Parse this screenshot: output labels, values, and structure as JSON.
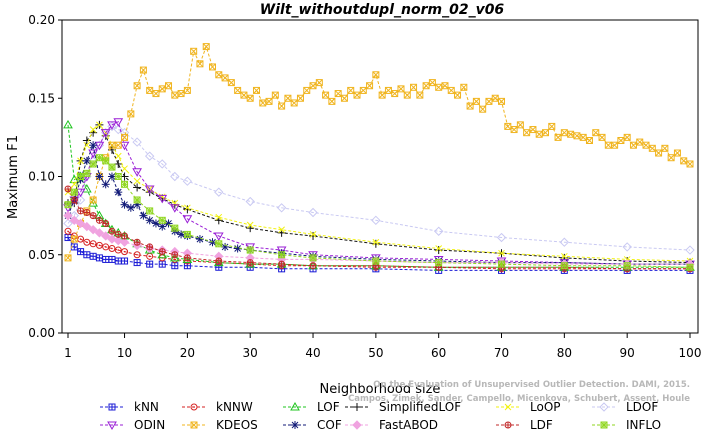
{
  "chart_data": {
    "type": "line",
    "title": "Wilt_withoutdupl_norm_02_v06",
    "xlabel": "Neighborhood size",
    "ylabel": "Maximum F1",
    "xlim": [
      1,
      100
    ],
    "ylim": [
      0,
      0.2
    ],
    "x_ticks": [
      "1",
      "10",
      "20",
      "30",
      "40",
      "50",
      "60",
      "70",
      "80",
      "90",
      "100"
    ],
    "y_ticks": [
      "0.00",
      "0.05",
      "0.10",
      "0.15",
      "0.20"
    ],
    "legend_position": "bottom",
    "credit": [
      "Campos, Zimek, Sander, Campello, Micenkova, Schubert, Assent, Houle",
      "On the Evaluation of Unsupervised Outlier Detection. DAMI, 2015."
    ],
    "series": [
      {
        "name": "kNN",
        "color": "#1c1cd6",
        "marker": "square-plus",
        "x": [
          1,
          2,
          3,
          4,
          5,
          6,
          7,
          8,
          9,
          10,
          12,
          14,
          16,
          18,
          20,
          25,
          30,
          35,
          40,
          50,
          60,
          70,
          80,
          90,
          100
        ],
        "y": [
          0.061,
          0.055,
          0.052,
          0.05,
          0.049,
          0.048,
          0.047,
          0.047,
          0.046,
          0.046,
          0.045,
          0.044,
          0.044,
          0.043,
          0.043,
          0.042,
          0.042,
          0.041,
          0.041,
          0.041,
          0.04,
          0.04,
          0.04,
          0.04,
          0.04
        ]
      },
      {
        "name": "kNNW",
        "color": "#d62222",
        "marker": "circle-dot",
        "x": [
          1,
          2,
          3,
          4,
          5,
          6,
          7,
          8,
          9,
          10,
          12,
          14,
          16,
          18,
          20,
          25,
          30,
          35,
          40,
          50,
          60,
          70,
          80,
          90,
          100
        ],
        "y": [
          0.065,
          0.062,
          0.06,
          0.058,
          0.057,
          0.056,
          0.055,
          0.054,
          0.053,
          0.052,
          0.05,
          0.049,
          0.048,
          0.047,
          0.046,
          0.045,
          0.044,
          0.043,
          0.043,
          0.042,
          0.042,
          0.041,
          0.041,
          0.041,
          0.041
        ]
      },
      {
        "name": "LOF",
        "color": "#1fc41f",
        "marker": "triangle",
        "x": [
          1,
          2,
          3,
          4,
          5,
          6,
          7,
          8,
          9,
          10,
          12,
          14,
          16,
          18,
          20,
          25,
          30,
          35,
          40,
          50,
          60,
          70,
          80,
          90,
          100
        ],
        "y": [
          0.133,
          0.098,
          0.1,
          0.092,
          0.083,
          0.075,
          0.07,
          0.066,
          0.064,
          0.062,
          0.057,
          0.053,
          0.05,
          0.048,
          0.047,
          0.045,
          0.044,
          0.044,
          0.043,
          0.043,
          0.042,
          0.042,
          0.042,
          0.042,
          0.042
        ]
      },
      {
        "name": "SimplifiedLOF",
        "color": "#111111",
        "marker": "plus",
        "x": [
          1,
          2,
          3,
          4,
          5,
          6,
          7,
          8,
          9,
          10,
          12,
          14,
          16,
          18,
          20,
          25,
          30,
          35,
          40,
          50,
          60,
          70,
          80,
          90,
          100
        ],
        "y": [
          0.083,
          0.083,
          0.11,
          0.123,
          0.128,
          0.133,
          0.126,
          0.117,
          0.108,
          0.1,
          0.093,
          0.09,
          0.086,
          0.082,
          0.079,
          0.072,
          0.067,
          0.064,
          0.062,
          0.057,
          0.053,
          0.051,
          0.048,
          0.046,
          0.045
        ]
      },
      {
        "name": "LoOP",
        "color": "#f2f20f",
        "marker": "cross",
        "x": [
          1,
          2,
          3,
          4,
          5,
          6,
          7,
          8,
          9,
          10,
          12,
          14,
          16,
          18,
          20,
          25,
          30,
          35,
          40,
          50,
          60,
          70,
          80,
          90,
          100
        ],
        "y": [
          0.09,
          0.095,
          0.11,
          0.12,
          0.13,
          0.133,
          0.128,
          0.12,
          0.113,
          0.105,
          0.097,
          0.092,
          0.087,
          0.083,
          0.08,
          0.074,
          0.069,
          0.066,
          0.063,
          0.058,
          0.054,
          0.051,
          0.049,
          0.047,
          0.046
        ]
      },
      {
        "name": "LDOF",
        "color": "#c9c9f2",
        "marker": "diamond",
        "x": [
          1,
          2,
          3,
          4,
          5,
          6,
          7,
          8,
          9,
          10,
          12,
          14,
          16,
          18,
          20,
          25,
          30,
          35,
          40,
          50,
          60,
          70,
          80,
          90,
          100
        ],
        "y": [
          0.07,
          0.075,
          0.085,
          0.1,
          0.11,
          0.12,
          0.128,
          0.132,
          0.13,
          0.128,
          0.122,
          0.113,
          0.108,
          0.1,
          0.097,
          0.09,
          0.084,
          0.08,
          0.077,
          0.072,
          0.065,
          0.061,
          0.058,
          0.055,
          0.053
        ]
      },
      {
        "name": "ODIN",
        "color": "#9a1fd6",
        "marker": "triangle-down",
        "x": [
          1,
          2,
          3,
          4,
          5,
          6,
          7,
          8,
          9,
          10,
          12,
          14,
          16,
          18,
          20,
          25,
          30,
          35,
          40,
          50,
          60,
          70,
          80,
          90,
          100
        ],
        "y": [
          0.08,
          0.085,
          0.09,
          0.1,
          0.115,
          0.12,
          0.128,
          0.133,
          0.135,
          0.12,
          0.103,
          0.092,
          0.086,
          0.08,
          0.073,
          0.062,
          0.055,
          0.053,
          0.05,
          0.048,
          0.047,
          0.046,
          0.045,
          0.044,
          0.044
        ]
      },
      {
        "name": "KDEOS",
        "color": "#f0b41e",
        "marker": "square-x",
        "x": [
          1,
          2,
          3,
          4,
          5,
          6,
          7,
          8,
          9,
          10,
          11,
          12,
          13,
          14,
          15,
          16,
          17,
          18,
          19,
          20,
          21,
          22,
          23,
          24,
          25,
          26,
          27,
          28,
          29,
          30,
          31,
          32,
          33,
          34,
          35,
          36,
          37,
          38,
          39,
          40,
          41,
          42,
          43,
          44,
          45,
          46,
          47,
          48,
          49,
          50,
          51,
          52,
          53,
          54,
          55,
          56,
          57,
          58,
          59,
          60,
          61,
          62,
          63,
          64,
          65,
          66,
          67,
          68,
          69,
          70,
          71,
          72,
          73,
          74,
          75,
          76,
          77,
          78,
          79,
          80,
          81,
          82,
          83,
          84,
          85,
          86,
          87,
          88,
          89,
          90,
          91,
          92,
          93,
          94,
          95,
          96,
          97,
          98,
          99,
          100
        ],
        "y": [
          0.048,
          0.06,
          0.07,
          0.078,
          0.085,
          0.1,
          0.112,
          0.12,
          0.12,
          0.125,
          0.14,
          0.158,
          0.168,
          0.155,
          0.153,
          0.156,
          0.158,
          0.152,
          0.153,
          0.155,
          0.18,
          0.172,
          0.183,
          0.17,
          0.165,
          0.163,
          0.16,
          0.155,
          0.152,
          0.15,
          0.155,
          0.147,
          0.148,
          0.152,
          0.145,
          0.15,
          0.147,
          0.15,
          0.155,
          0.158,
          0.16,
          0.152,
          0.148,
          0.153,
          0.15,
          0.155,
          0.152,
          0.155,
          0.158,
          0.165,
          0.152,
          0.155,
          0.153,
          0.156,
          0.152,
          0.157,
          0.152,
          0.158,
          0.16,
          0.157,
          0.158,
          0.155,
          0.152,
          0.157,
          0.145,
          0.148,
          0.143,
          0.148,
          0.15,
          0.148,
          0.132,
          0.13,
          0.133,
          0.128,
          0.13,
          0.127,
          0.128,
          0.132,
          0.125,
          0.128,
          0.127,
          0.126,
          0.125,
          0.123,
          0.128,
          0.125,
          0.12,
          0.12,
          0.123,
          0.125,
          0.12,
          0.122,
          0.12,
          0.118,
          0.115,
          0.118,
          0.112,
          0.115,
          0.11,
          0.108
        ]
      },
      {
        "name": "COF",
        "color": "#111a77",
        "marker": "asterisk",
        "x": [
          1,
          2,
          3,
          4,
          5,
          6,
          7,
          8,
          9,
          10,
          11,
          12,
          13,
          14,
          15,
          16,
          17,
          18,
          19,
          20,
          22,
          24,
          26,
          28,
          30,
          35,
          40,
          50,
          60,
          70,
          80,
          90,
          100
        ],
        "y": [
          0.075,
          0.085,
          0.098,
          0.11,
          0.12,
          0.1,
          0.095,
          0.1,
          0.09,
          0.082,
          0.08,
          0.082,
          0.075,
          0.072,
          0.07,
          0.068,
          0.07,
          0.065,
          0.063,
          0.062,
          0.06,
          0.058,
          0.055,
          0.054,
          0.053,
          0.051,
          0.049,
          0.047,
          0.046,
          0.045,
          0.045,
          0.044,
          0.044
        ]
      },
      {
        "name": "FastABOD",
        "color": "#f0a3e0",
        "marker": "diamond-fill",
        "x": [
          1,
          2,
          3,
          4,
          5,
          6,
          7,
          8,
          9,
          10,
          12,
          14,
          16,
          18,
          20,
          25,
          30,
          35,
          40,
          50,
          60,
          70,
          80,
          90,
          100
        ],
        "y": [
          0.075,
          0.072,
          0.07,
          0.068,
          0.066,
          0.064,
          0.062,
          0.06,
          0.059,
          0.058,
          0.056,
          0.054,
          0.053,
          0.052,
          0.051,
          0.049,
          0.048,
          0.047,
          0.047,
          0.046,
          0.045,
          0.045,
          0.044,
          0.044,
          0.044
        ]
      },
      {
        "name": "LDF",
        "color": "#c22828",
        "marker": "circle-plus",
        "x": [
          1,
          2,
          3,
          4,
          5,
          6,
          7,
          8,
          9,
          10,
          12,
          14,
          16,
          18,
          20,
          25,
          30,
          35,
          40,
          50,
          60,
          70,
          80,
          90,
          100
        ],
        "y": [
          0.092,
          0.085,
          0.078,
          0.077,
          0.075,
          0.072,
          0.07,
          0.065,
          0.063,
          0.062,
          0.058,
          0.055,
          0.052,
          0.05,
          0.048,
          0.046,
          0.045,
          0.044,
          0.043,
          0.043,
          0.042,
          0.042,
          0.042,
          0.041,
          0.041
        ]
      },
      {
        "name": "INFLO",
        "color": "#8fd61f",
        "marker": "square-star",
        "x": [
          1,
          2,
          3,
          4,
          5,
          6,
          7,
          8,
          9,
          10,
          12,
          14,
          16,
          18,
          20,
          25,
          30,
          35,
          40,
          50,
          60,
          70,
          80,
          90,
          100
        ],
        "y": [
          0.082,
          0.09,
          0.1,
          0.102,
          0.108,
          0.112,
          0.11,
          0.106,
          0.1,
          0.095,
          0.085,
          0.078,
          0.072,
          0.067,
          0.063,
          0.057,
          0.053,
          0.05,
          0.048,
          0.046,
          0.045,
          0.044,
          0.043,
          0.043,
          0.042
        ]
      }
    ]
  }
}
